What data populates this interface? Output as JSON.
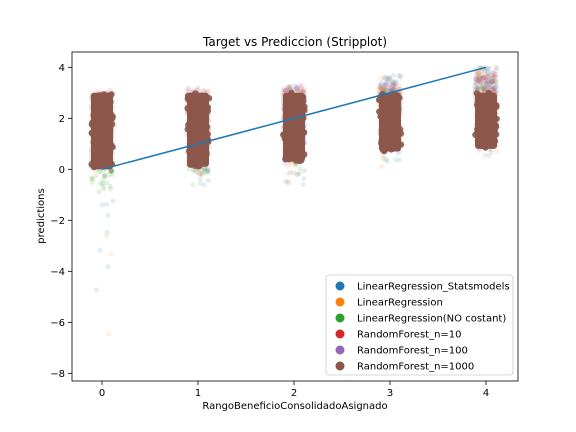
{
  "chart_data": {
    "type": "scatter",
    "subtype": "stripplot_with_line",
    "title": "Target vs Prediccion (Stripplot)",
    "xlabel": "RangoBeneficioConsolidadoAsignado",
    "ylabel": "predictions",
    "x_categories": [
      "0",
      "1",
      "2",
      "3",
      "4"
    ],
    "ylim": [
      -8.3,
      4.6
    ],
    "yticks": [
      4,
      2,
      0,
      -2,
      -4,
      -6,
      -8
    ],
    "grid": false,
    "legend_position": "lower right",
    "identity_line": {
      "x": [
        0,
        4
      ],
      "y": [
        0,
        4
      ],
      "color": "#1f77b4"
    },
    "series": [
      {
        "name": "LinearRegression_Statsmodels",
        "color": "#1f77b4",
        "ranges": {
          "0": [
            -7.7,
            2.9
          ],
          "1": [
            -0.8,
            3.1
          ],
          "2": [
            -1.1,
            3.3
          ],
          "3": [
            -0.1,
            3.7
          ],
          "4": [
            0.3,
            4.0
          ]
        }
      },
      {
        "name": "LinearRegression",
        "color": "#ff7f0e",
        "ranges": {
          "0": [
            -7.4,
            2.9
          ],
          "1": [
            -0.8,
            3.1
          ],
          "2": [
            -1.1,
            3.3
          ],
          "3": [
            -0.1,
            3.7
          ],
          "4": [
            0.3,
            4.0
          ]
        }
      },
      {
        "name": "LinearRegression(NO costant)",
        "color": "#2ca02c",
        "ranges": {
          "0": [
            -1.0,
            1.0
          ],
          "1": [
            -0.8,
            1.8
          ],
          "2": [
            -0.5,
            2.5
          ],
          "3": [
            0.2,
            3.2
          ],
          "4": [
            0.6,
            3.7
          ]
        }
      },
      {
        "name": "RandomForest_n=10",
        "color": "#d62728",
        "ranges": {
          "0": [
            -0.2,
            3.1
          ],
          "1": [
            -0.2,
            3.1
          ],
          "2": [
            0.1,
            3.2
          ],
          "3": [
            0.5,
            3.4
          ],
          "4": [
            0.7,
            3.8
          ]
        }
      },
      {
        "name": "RandomForest_n=100",
        "color": "#9467bd",
        "ranges": {
          "0": [
            0.0,
            3.0
          ],
          "1": [
            0.1,
            3.2
          ],
          "2": [
            0.2,
            3.3
          ],
          "3": [
            0.6,
            3.5
          ],
          "4": [
            0.6,
            3.9
          ]
        }
      },
      {
        "name": "RandomForest_n=1000",
        "color": "#8c564b",
        "ranges": {
          "0": [
            0.0,
            3.0
          ],
          "1": [
            0.1,
            3.0
          ],
          "2": [
            0.3,
            3.0
          ],
          "3": [
            0.7,
            3.0
          ],
          "4": [
            0.8,
            3.0
          ]
        }
      }
    ]
  }
}
